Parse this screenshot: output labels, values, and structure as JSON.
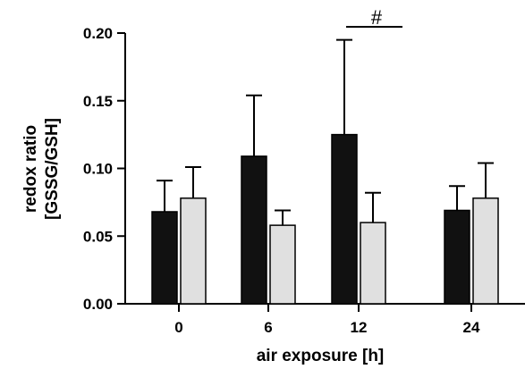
{
  "chart_data": {
    "type": "bar",
    "categories": [
      "0",
      "6",
      "12",
      "24"
    ],
    "series": [
      {
        "color": "#111111",
        "values": [
          0.068,
          0.109,
          0.125,
          0.069
        ],
        "error": [
          0.023,
          0.045,
          0.07,
          0.018
        ]
      },
      {
        "color": "#e0e0e0",
        "values": [
          0.078,
          0.058,
          0.06,
          0.078
        ],
        "error": [
          0.023,
          0.011,
          0.022,
          0.026
        ]
      }
    ],
    "xlabel": "air exposure [h]",
    "ylabel_line1": "redox ratio",
    "ylabel_line2": "[GSSG/GSH]",
    "ylim": [
      0,
      0.2
    ],
    "yticks": [
      "0.00",
      "0.05",
      "0.10",
      "0.15",
      "0.20"
    ],
    "ytick_values": [
      0,
      0.05,
      0.1,
      0.15,
      0.2
    ],
    "grid": false,
    "legend": "none",
    "annotation": {
      "text": "#",
      "between": [
        "6",
        "12"
      ]
    }
  }
}
